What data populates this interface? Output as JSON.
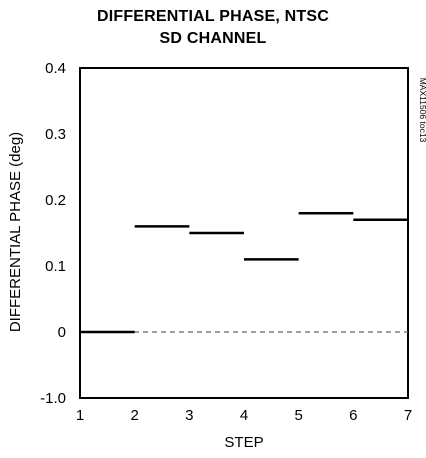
{
  "chart_data": {
    "type": "line",
    "title": "DIFFERENTIAL PHASE, NTSC",
    "subtitle": "SD CHANNEL",
    "xlabel": "STEP",
    "ylabel": "DIFFERENTIAL PHASE (deg)",
    "side_code": "MAX11506 toc13",
    "x_ticks": [
      "1",
      "2",
      "3",
      "4",
      "5",
      "6",
      "7"
    ],
    "y_ticks": [
      "0.4",
      "0.3",
      "0.2",
      "0.1",
      "0",
      "-1.0"
    ],
    "xlim": [
      1,
      7
    ],
    "grid": false,
    "reference_line": {
      "y": 0,
      "style": "dashed"
    },
    "series": [
      {
        "values": [
          {
            "x_start": 1,
            "x_end": 2,
            "y": 0.0
          },
          {
            "x_start": 2,
            "x_end": 3,
            "y": 0.16
          },
          {
            "x_start": 3,
            "x_end": 4,
            "y": 0.15
          },
          {
            "x_start": 4,
            "x_end": 5,
            "y": 0.11
          },
          {
            "x_start": 5,
            "x_end": 6,
            "y": 0.18
          },
          {
            "x_start": 6,
            "x_end": 7,
            "y": 0.17
          }
        ]
      }
    ],
    "colors": {
      "line": "#000000",
      "reference": "#666666"
    }
  }
}
